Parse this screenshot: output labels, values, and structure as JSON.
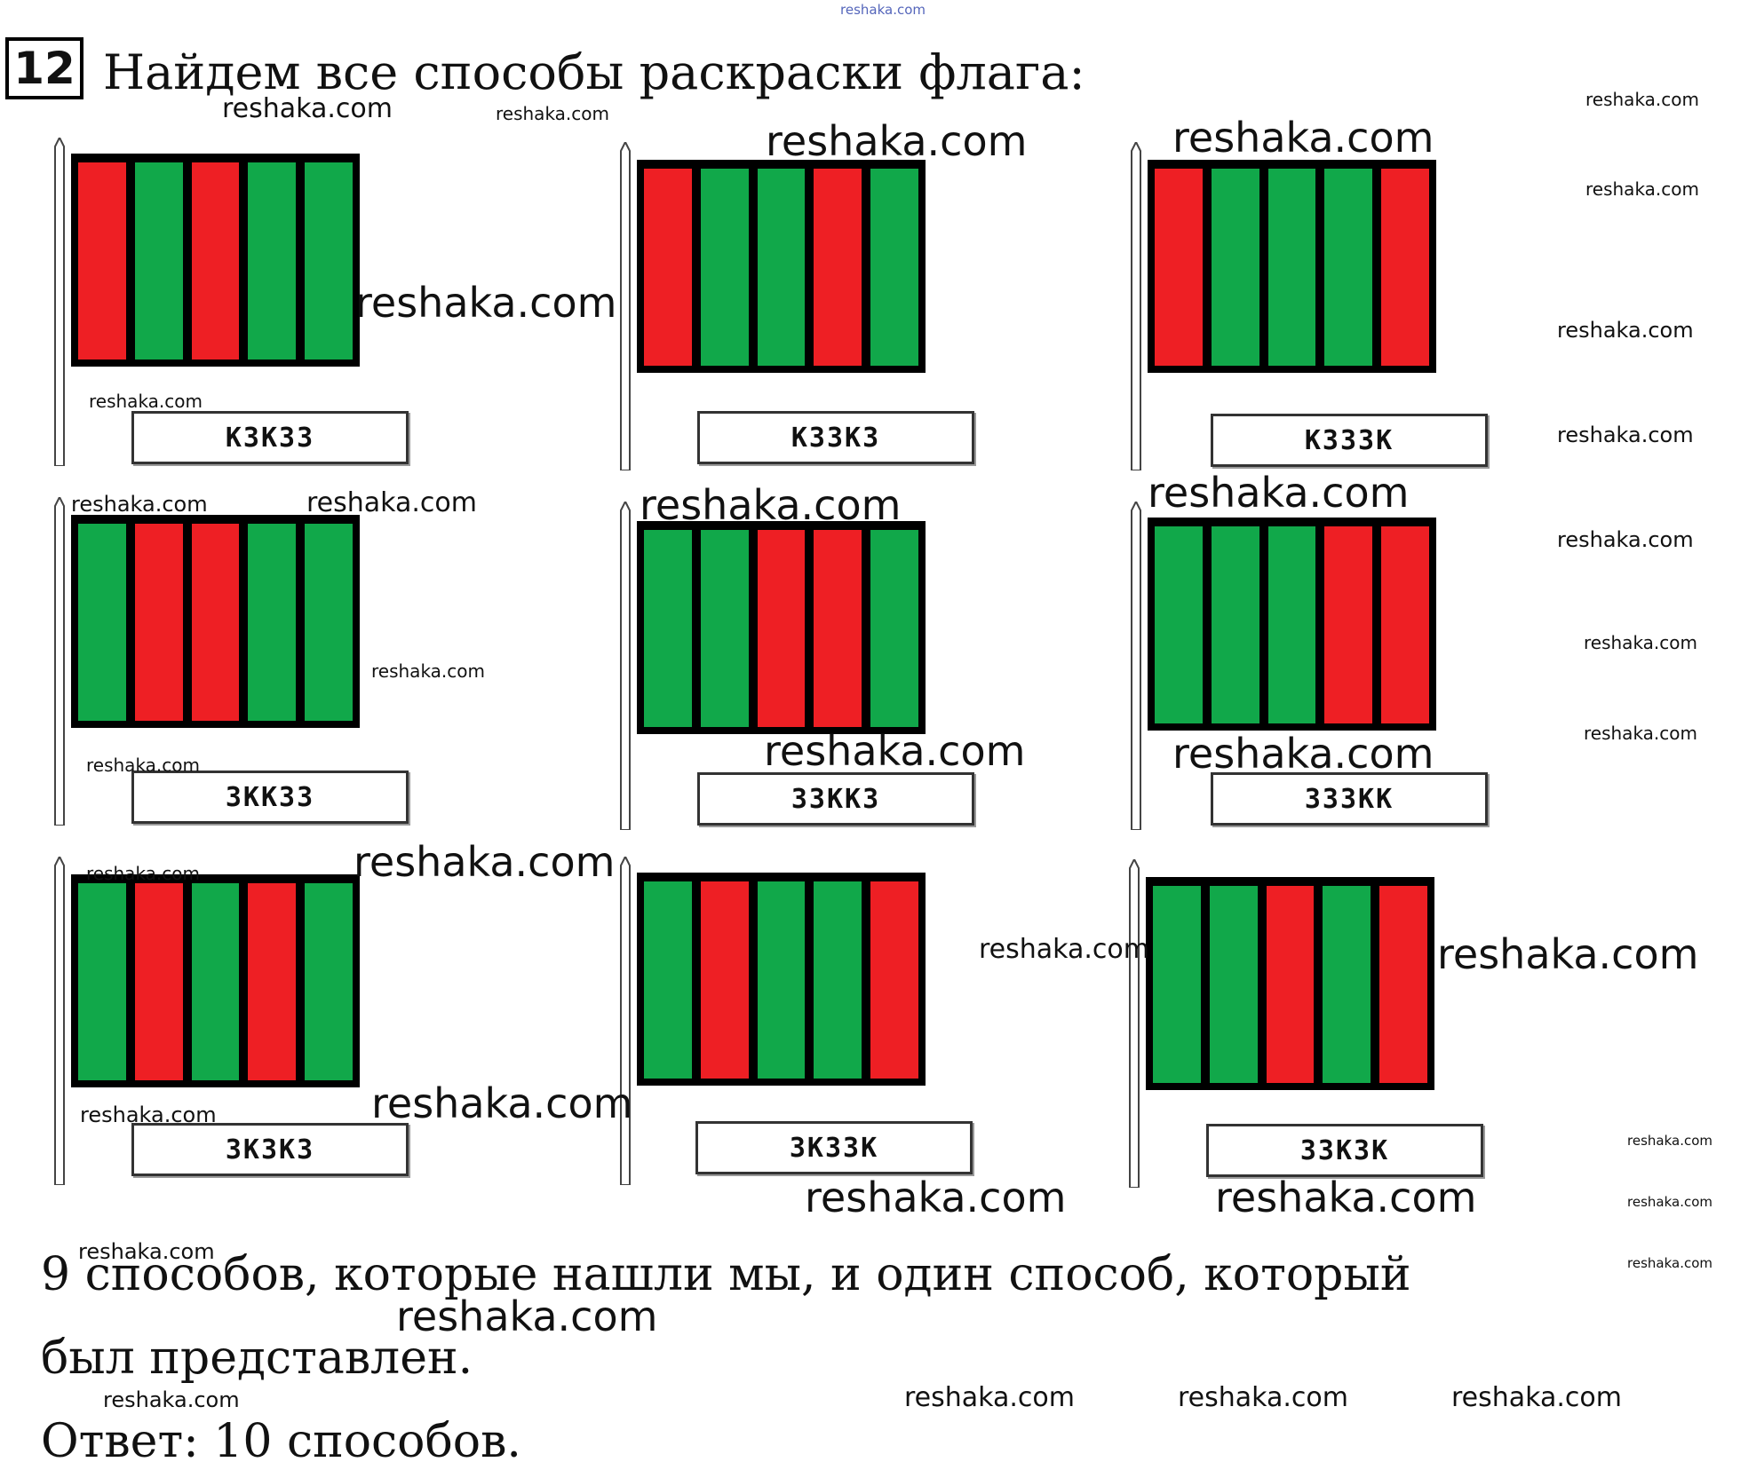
{
  "task": {
    "number": "12",
    "title": "Найдем все способы раскраски флага:"
  },
  "colors": {
    "red": "#ee1f24",
    "green": "#11a84a"
  },
  "flags": [
    {
      "code": "КЗКЗЗ",
      "stripes": [
        "red",
        "green",
        "red",
        "green",
        "green"
      ]
    },
    {
      "code": "КЗЗКЗ",
      "stripes": [
        "red",
        "green",
        "green",
        "red",
        "green"
      ]
    },
    {
      "code": "КЗЗЗК",
      "stripes": [
        "red",
        "green",
        "green",
        "green",
        "red"
      ]
    },
    {
      "code": "ЗККЗЗ",
      "stripes": [
        "green",
        "red",
        "red",
        "green",
        "green"
      ]
    },
    {
      "code": "ЗЗККЗ",
      "stripes": [
        "green",
        "green",
        "red",
        "red",
        "green"
      ]
    },
    {
      "code": "ЗЗЗКК",
      "stripes": [
        "green",
        "green",
        "green",
        "red",
        "red"
      ]
    },
    {
      "code": "ЗКЗКЗ",
      "stripes": [
        "green",
        "red",
        "green",
        "red",
        "green"
      ]
    },
    {
      "code": "ЗКЗЗК",
      "stripes": [
        "green",
        "red",
        "green",
        "green",
        "red"
      ]
    },
    {
      "code": "ЗЗКЗК",
      "stripes": [
        "green",
        "green",
        "red",
        "green",
        "red"
      ]
    }
  ],
  "conclusion": {
    "line1": "9 способов, которые нашли мы, и один способ, который",
    "line2": "был представлен.",
    "answer": "Ответ: 10 способов."
  },
  "watermark": {
    "text": "reshaka.com"
  }
}
